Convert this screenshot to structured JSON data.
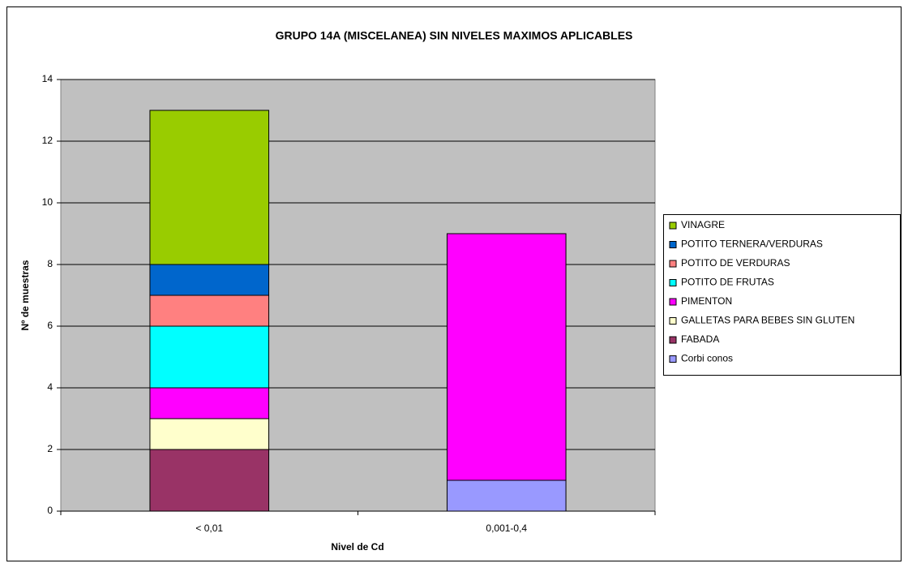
{
  "chart_data": {
    "type": "stacked_bar",
    "title": "GRUPO 14A (MISCELANEA) SIN NIVELES MAXIMOS APLICABLES",
    "x_label": "Nivel de Cd",
    "y_label": "Nº de muestras",
    "categories": [
      "< 0,01",
      "0,001-0,4"
    ],
    "series": [
      {
        "name": "Corbi conos",
        "color": "#9999ff",
        "values": [
          0,
          1
        ]
      },
      {
        "name": "FABADA",
        "color": "#993366",
        "values": [
          2,
          0
        ]
      },
      {
        "name": "GALLETAS PARA BEBES SIN GLUTEN",
        "color": "#ffffcc",
        "values": [
          1,
          0
        ]
      },
      {
        "name": "PIMENTON",
        "color": "#ff00ff",
        "values": [
          1,
          8
        ]
      },
      {
        "name": "POTITO DE FRUTAS",
        "color": "#00ffff",
        "values": [
          2,
          0
        ]
      },
      {
        "name": "POTITO DE VERDURAS",
        "color": "#ff8080",
        "values": [
          1,
          0
        ]
      },
      {
        "name": "POTITO TERNERA/VERDURAS",
        "color": "#0066cc",
        "values": [
          1,
          0
        ]
      },
      {
        "name": "VINAGRE",
        "color": "#99cc00",
        "values": [
          5,
          0
        ]
      }
    ],
    "ylim": [
      0,
      14
    ],
    "yticks": [
      0,
      2,
      4,
      6,
      8,
      10,
      12,
      14
    ],
    "grid": true,
    "legend": "right"
  }
}
